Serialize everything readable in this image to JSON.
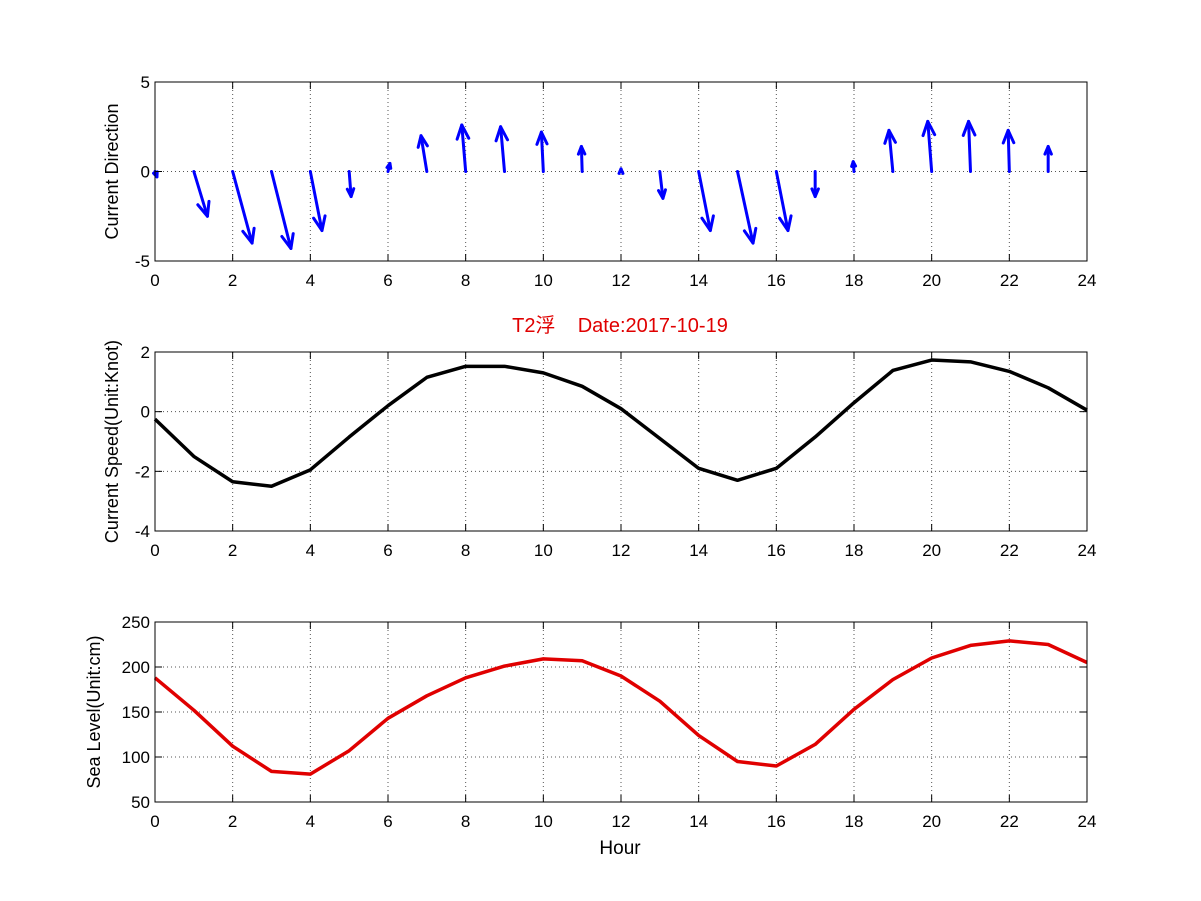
{
  "colors": {
    "arrows": "#0000ff",
    "speed_line": "#000000",
    "sea_level_line": "#e00000",
    "title": "#e00000",
    "background": "#ffffff"
  },
  "chart_data": [
    {
      "type": "quiver",
      "title": "",
      "xlabel": "",
      "ylabel": "Current Direction",
      "xlim": [
        0,
        24
      ],
      "ylim": [
        -5,
        5
      ],
      "xticks": [
        "0",
        "2",
        "4",
        "6",
        "8",
        "10",
        "12",
        "14",
        "16",
        "18",
        "20",
        "22",
        "24"
      ],
      "yticks": [
        "-5",
        "0",
        "5"
      ],
      "grid": true,
      "vectors": [
        {
          "x": 0,
          "u": 0.05,
          "v": -0.3
        },
        {
          "x": 1,
          "u": 0.35,
          "v": -2.5
        },
        {
          "x": 2,
          "u": 0.5,
          "v": -4.0
        },
        {
          "x": 3,
          "u": 0.5,
          "v": -4.3
        },
        {
          "x": 4,
          "u": 0.3,
          "v": -3.3
        },
        {
          "x": 5,
          "u": 0.05,
          "v": -1.4
        },
        {
          "x": 6,
          "u": 0.05,
          "v": 0.45
        },
        {
          "x": 7,
          "u": -0.15,
          "v": 2.0
        },
        {
          "x": 8,
          "u": -0.1,
          "v": 2.6
        },
        {
          "x": 9,
          "u": -0.1,
          "v": 2.5
        },
        {
          "x": 10,
          "u": -0.05,
          "v": 2.2
        },
        {
          "x": 11,
          "u": -0.02,
          "v": 1.4
        },
        {
          "x": 12,
          "u": 0.0,
          "v": 0.15
        },
        {
          "x": 13,
          "u": 0.08,
          "v": -1.5
        },
        {
          "x": 14,
          "u": 0.3,
          "v": -3.3
        },
        {
          "x": 15,
          "u": 0.4,
          "v": -4.0
        },
        {
          "x": 16,
          "u": 0.3,
          "v": -3.3
        },
        {
          "x": 17,
          "u": 0.0,
          "v": -1.4
        },
        {
          "x": 18,
          "u": -0.02,
          "v": 0.55
        },
        {
          "x": 19,
          "u": -0.1,
          "v": 2.3
        },
        {
          "x": 20,
          "u": -0.1,
          "v": 2.8
        },
        {
          "x": 21,
          "u": -0.05,
          "v": 2.8
        },
        {
          "x": 22,
          "u": -0.03,
          "v": 2.3
        },
        {
          "x": 23,
          "u": 0.0,
          "v": 1.4
        }
      ]
    },
    {
      "type": "line",
      "title": "T2浮    Date:2017-10-19",
      "xlabel": "",
      "ylabel": "Current Speed(Unit:Knot)",
      "xlim": [
        0,
        24
      ],
      "ylim": [
        -4,
        2
      ],
      "xticks": [
        "0",
        "2",
        "4",
        "6",
        "8",
        "10",
        "12",
        "14",
        "16",
        "18",
        "20",
        "22",
        "24"
      ],
      "yticks": [
        "-4",
        "-2",
        "0",
        "2"
      ],
      "grid": true,
      "x": [
        0,
        1,
        2,
        3,
        4,
        5,
        6,
        7,
        8,
        9,
        10,
        11,
        12,
        13,
        14,
        15,
        16,
        17,
        18,
        19,
        20,
        21,
        22,
        23,
        24
      ],
      "values": [
        -0.25,
        -1.5,
        -2.35,
        -2.5,
        -1.95,
        -0.85,
        0.2,
        1.15,
        1.52,
        1.52,
        1.3,
        0.85,
        0.1,
        -0.9,
        -1.9,
        -2.3,
        -1.9,
        -0.85,
        0.3,
        1.38,
        1.73,
        1.67,
        1.35,
        0.8,
        0.05
      ]
    },
    {
      "type": "line",
      "title": "",
      "xlabel": "Hour",
      "ylabel": "Sea Level(Unit:cm)",
      "xlim": [
        0,
        24
      ],
      "ylim": [
        50,
        250
      ],
      "xticks": [
        "0",
        "2",
        "4",
        "6",
        "8",
        "10",
        "12",
        "14",
        "16",
        "18",
        "20",
        "22",
        "24"
      ],
      "yticks": [
        "50",
        "100",
        "150",
        "200",
        "250"
      ],
      "grid": true,
      "x": [
        0,
        1,
        2,
        3,
        4,
        5,
        6,
        7,
        8,
        9,
        10,
        11,
        12,
        13,
        14,
        15,
        16,
        17,
        18,
        19,
        20,
        21,
        22,
        23,
        24
      ],
      "values": [
        188,
        152,
        112,
        84,
        81,
        107,
        143,
        168,
        188,
        201,
        209,
        207,
        190,
        162,
        124,
        95,
        90,
        114,
        153,
        186,
        210,
        224,
        229,
        225,
        205
      ]
    }
  ]
}
